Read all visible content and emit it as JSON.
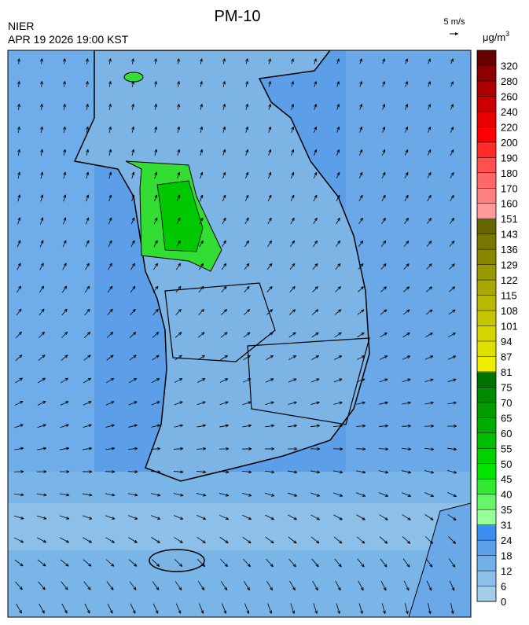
{
  "header": {
    "title": "PM-10",
    "source": "NIER",
    "datetime": "APR 19 2026 19:00 KST",
    "wind_scale": "5 m/s"
  },
  "colorbar": {
    "unit": "μg/m",
    "unit_superscript": "3",
    "ticks": [
      0,
      6,
      12,
      18,
      24,
      31,
      35,
      40,
      45,
      50,
      55,
      60,
      65,
      70,
      75,
      81,
      87,
      94,
      101,
      108,
      115,
      122,
      129,
      136,
      143,
      151,
      160,
      170,
      180,
      190,
      200,
      220,
      240,
      260,
      280,
      320
    ],
    "colors": [
      "#a3cde9",
      "#8cbfe9",
      "#72b0e8",
      "#5da2e8",
      "#3b8ff0",
      "#99ff99",
      "#66f566",
      "#33ea33",
      "#00e400",
      "#00d200",
      "#00bf00",
      "#00ad00",
      "#009c00",
      "#008a00",
      "#007300",
      "#eeee00",
      "#e0e000",
      "#d4d400",
      "#c6c600",
      "#b8b800",
      "#a8a800",
      "#989800",
      "#888800",
      "#787800",
      "#666600",
      "#ff9a9a",
      "#ff8080",
      "#ff6868",
      "#ff5050",
      "#ff2a2a",
      "#ff0000",
      "#e80000",
      "#cc0000",
      "#ac0000",
      "#8c0000",
      "#660000"
    ]
  }
}
